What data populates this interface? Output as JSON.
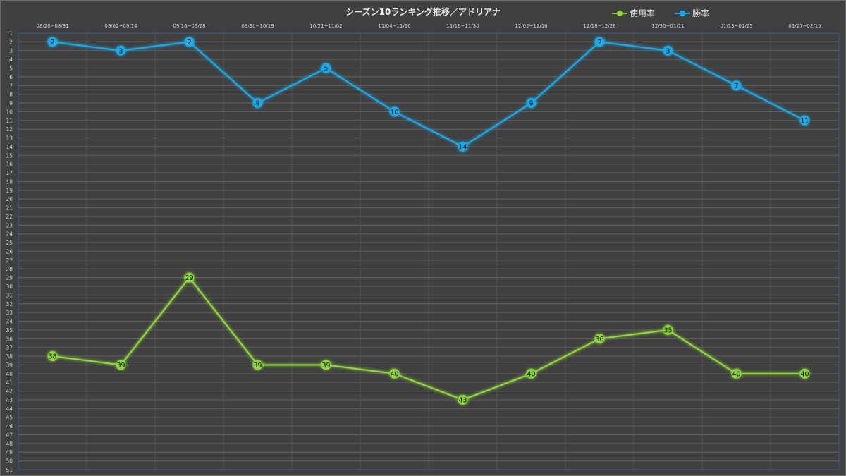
{
  "chart_data": {
    "type": "line",
    "title": "シーズン10ランキング推移／アドリアナ",
    "categories": [
      "08/20~08/31",
      "09/02~09/14",
      "09/16~09/28",
      "09/30~10/19",
      "10/21~11/02",
      "11/04~11/16",
      "11/18~11/30",
      "12/02~12/16",
      "12/18~12/28",
      "12/30~01/11",
      "01/13~01/25",
      "01/27~02/15"
    ],
    "series": [
      {
        "name": "使用率",
        "color": "#8fd63a",
        "values": [
          38,
          39,
          29,
          39,
          39,
          40,
          43,
          40,
          36,
          35,
          40,
          40
        ]
      },
      {
        "name": "勝率",
        "color": "#1aa9e8",
        "values": [
          2,
          3,
          2,
          9,
          5,
          10,
          14,
          9,
          2,
          3,
          7,
          11
        ]
      }
    ],
    "ylim": [
      1,
      51
    ],
    "y_inverted": true,
    "yticks_step": 1,
    "grid": true,
    "legend": "top-right",
    "xlabel": "",
    "ylabel": ""
  }
}
